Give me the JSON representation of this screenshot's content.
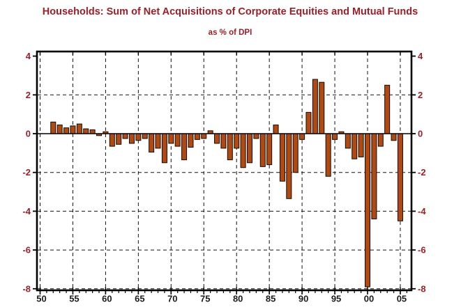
{
  "title": "Households: Sum of Net Acquisitions of Corporate Equities and Mutual Funds",
  "subtitle": "as % of DPI",
  "colors": {
    "title_red": "#9b1f28",
    "axis_label_red": "#9b1f28",
    "x_label_color": "#1a1a1a",
    "bar_fill": "#b04a12",
    "bar_stroke": "#140a02",
    "frame": "#000000",
    "grid": "#111111",
    "background": "#ffffff"
  },
  "chart_data": {
    "type": "bar",
    "title": "Households: Sum of Net Acquisitions of Corporate Equities and Mutual Funds",
    "subtitle": "as % of DPI",
    "xlabel": "",
    "ylabel": "",
    "grid": "dashed",
    "legend_position": "none",
    "ylim": [
      -8,
      4
    ],
    "xlim": [
      1949.5,
      2006.7
    ],
    "years": [
      1952,
      1953,
      1954,
      1955,
      1956,
      1957,
      1958,
      1959,
      1960,
      1961,
      1962,
      1963,
      1964,
      1965,
      1966,
      1967,
      1968,
      1969,
      1970,
      1971,
      1972,
      1973,
      1974,
      1975,
      1976,
      1977,
      1978,
      1979,
      1980,
      1981,
      1982,
      1983,
      1984,
      1985,
      1986,
      1987,
      1988,
      1989,
      1990,
      1991,
      1992,
      1993,
      1994,
      1995,
      1996,
      1997,
      1998,
      1999,
      2000,
      2001,
      2002,
      2003,
      2004,
      2005
    ],
    "values": [
      0.6,
      0.45,
      0.3,
      0.4,
      0.5,
      0.25,
      0.2,
      -0.1,
      0.1,
      -0.65,
      -0.55,
      -0.25,
      -0.5,
      -0.35,
      -0.25,
      -0.95,
      -0.75,
      -1.5,
      -0.5,
      -0.65,
      -1.35,
      -0.7,
      -0.3,
      -0.25,
      0.15,
      -0.5,
      -0.75,
      -1.35,
      -0.75,
      -1.75,
      -1.5,
      -0.25,
      -1.7,
      -1.6,
      0.45,
      -2.45,
      -3.35,
      -2.0,
      -0.3,
      1.1,
      2.8,
      2.65,
      -2.2,
      -0.3,
      0.1,
      -0.75,
      -1.3,
      -1.2,
      -7.9,
      -4.4,
      -0.65,
      2.5,
      -0.35,
      -4.5
    ],
    "x_tick_years": [
      1950,
      1955,
      1960,
      1965,
      1970,
      1975,
      1980,
      1985,
      1990,
      1995,
      2000,
      2005
    ],
    "x_tick_labels": [
      "50",
      "55",
      "60",
      "65",
      "70",
      "75",
      "80",
      "85",
      "90",
      "95",
      "00",
      "05"
    ],
    "y_ticks": [
      4,
      2,
      0,
      -2,
      -4,
      -6,
      -8
    ],
    "y_tick_labels": [
      "4",
      "2",
      "0",
      "-2",
      "-4",
      "-6",
      "-8"
    ],
    "grid_x_years": [
      1950,
      1955,
      1960,
      1965,
      1970,
      1975,
      1980,
      1985,
      1990,
      1995,
      2000,
      2005
    ],
    "grid_y_values": [
      2,
      -2,
      -4,
      -6,
      -8
    ]
  }
}
